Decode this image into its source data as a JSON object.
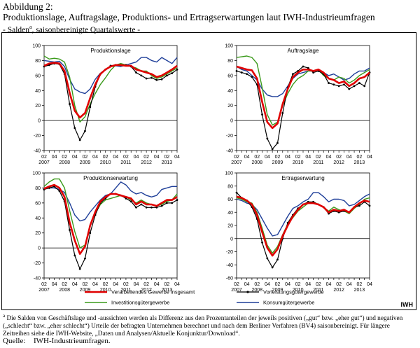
{
  "header": {
    "figure_label": "Abbildung 2:",
    "title": "Produktionslage, Auftragslage, Produktions- und Ertragserwartungen laut IWH-Industrieumfragen",
    "subtitle_pre": "- Salden",
    "subtitle_sup": "a",
    "subtitle_post": ", saisonbereinigte Quartalswerte -"
  },
  "brand": "IWH",
  "footnote": {
    "marker": "a",
    "text": "Die Salden von Geschäftslage und -aussichten werden als Differenz aus den Prozentanteilen der jeweils positiven („gut“ bzw. „eher gut“) und negativen („schlecht“ bzw. „eher schlecht“) Urteile der befragten Unternehmen berechnet und nach dem Berliner Verfahren (BV4) saisonbereinigt. Für längere Zeitreihen siehe die IWH-Website, „Daten und Analysen/Aktuelle Konjunktur/Download“."
  },
  "source": {
    "label": "Quelle:",
    "text": "IWH-Industrieumfragen."
  },
  "colors": {
    "verarbeitend": "#e00000",
    "vorleistung": "#000000",
    "investition": "#3a9a1a",
    "konsum": "#1f3f99"
  },
  "chart_data": [
    {
      "type": "line",
      "title": "Produktionslage",
      "x": [
        "2007Q2",
        "2007Q3",
        "2007Q4",
        "2008Q1",
        "2008Q2",
        "2008Q3",
        "2008Q4",
        "2009Q1",
        "2009Q2",
        "2009Q3",
        "2009Q4",
        "2010Q1",
        "2010Q2",
        "2010Q3",
        "2010Q4",
        "2011Q1",
        "2011Q2",
        "2011Q3",
        "2011Q4",
        "2012Q1",
        "2012Q2",
        "2012Q3",
        "2012Q4",
        "2013Q1",
        "2013Q2",
        "2013Q3",
        "2013Q4"
      ],
      "ylim": [
        -40,
        100
      ],
      "yticks": [
        -40,
        -20,
        0,
        20,
        40,
        60,
        80,
        100
      ],
      "tick_labels_top": [
        "02",
        "04",
        "02",
        "04",
        "02",
        "04",
        "02",
        "04",
        "02",
        "04",
        "02",
        "04",
        "02",
        "04"
      ],
      "tick_labels_bottom": [
        "2007",
        "2008",
        "2009",
        "2010",
        "2011",
        "2012",
        "2013"
      ],
      "series": [
        {
          "name": "Verarbeitendes Gewerbe insgesamt",
          "values": [
            73,
            76,
            77,
            76,
            66,
            37,
            13,
            4,
            10,
            30,
            48,
            62,
            68,
            72,
            74,
            74,
            73,
            73,
            68,
            66,
            64,
            62,
            58,
            60,
            64,
            68,
            73
          ]
        },
        {
          "name": "Vorleistungsgütergewerbe",
          "values": [
            72,
            74,
            76,
            75,
            62,
            22,
            -10,
            -26,
            -14,
            18,
            45,
            62,
            68,
            73,
            74,
            74,
            74,
            72,
            64,
            60,
            56,
            57,
            54,
            55,
            60,
            63,
            68
          ]
        },
        {
          "name": "Investitionsgütergewerbe",
          "values": [
            86,
            82,
            83,
            82,
            78,
            58,
            20,
            -2,
            5,
            22,
            36,
            48,
            57,
            67,
            74,
            76,
            74,
            72,
            70,
            66,
            66,
            60,
            56,
            58,
            62,
            66,
            70
          ]
        },
        {
          "name": "Konsumgütergewerbe",
          "values": [
            80,
            79,
            78,
            79,
            72,
            55,
            42,
            38,
            36,
            42,
            55,
            63,
            68,
            72,
            73,
            72,
            74,
            76,
            78,
            84,
            84,
            80,
            78,
            84,
            80,
            76,
            84
          ]
        }
      ]
    },
    {
      "type": "line",
      "title": "Auftragslage",
      "x": [
        "2007Q2",
        "2007Q3",
        "2007Q4",
        "2008Q1",
        "2008Q2",
        "2008Q3",
        "2008Q4",
        "2009Q1",
        "2009Q2",
        "2009Q3",
        "2009Q4",
        "2010Q1",
        "2010Q2",
        "2010Q3",
        "2010Q4",
        "2011Q1",
        "2011Q2",
        "2011Q3",
        "2011Q4",
        "2012Q1",
        "2012Q2",
        "2012Q3",
        "2012Q4",
        "2013Q1",
        "2013Q2",
        "2013Q3",
        "2013Q4"
      ],
      "ylim": [
        -40,
        100
      ],
      "yticks": [
        -40,
        -20,
        0,
        20,
        40,
        60,
        80,
        100
      ],
      "tick_labels_top": [
        "02",
        "04",
        "02",
        "04",
        "02",
        "04",
        "02",
        "04",
        "02",
        "04",
        "02",
        "04",
        "02",
        "04"
      ],
      "tick_labels_bottom": [
        "2007",
        "2008",
        "2009",
        "2010",
        "2011",
        "2012",
        "2013"
      ],
      "series": [
        {
          "name": "Verarbeitendes Gewerbe insgesamt",
          "values": [
            72,
            70,
            68,
            67,
            56,
            25,
            -2,
            -10,
            -4,
            22,
            42,
            58,
            64,
            68,
            68,
            66,
            68,
            64,
            56,
            54,
            50,
            52,
            46,
            50,
            56,
            58,
            64
          ]
        },
        {
          "name": "Vorleistungsgütergewerbe",
          "values": [
            66,
            64,
            62,
            58,
            48,
            8,
            -24,
            -38,
            -30,
            10,
            44,
            62,
            66,
            72,
            70,
            64,
            66,
            62,
            50,
            48,
            46,
            48,
            42,
            46,
            50,
            46,
            64
          ]
        },
        {
          "name": "Investitionsgütergewerbe",
          "values": [
            84,
            85,
            86,
            84,
            76,
            44,
            8,
            -6,
            -2,
            20,
            36,
            48,
            56,
            60,
            66,
            66,
            68,
            60,
            56,
            54,
            58,
            56,
            50,
            54,
            60,
            64,
            68
          ]
        },
        {
          "name": "Konsumgütergewerbe",
          "values": [
            72,
            68,
            66,
            60,
            54,
            42,
            34,
            32,
            32,
            36,
            46,
            56,
            62,
            64,
            66,
            66,
            68,
            64,
            60,
            62,
            58,
            54,
            56,
            62,
            66,
            66,
            70
          ]
        }
      ]
    },
    {
      "type": "line",
      "title": "Produktionserwartung",
      "x": [
        "2007Q2",
        "2007Q3",
        "2007Q4",
        "2008Q1",
        "2008Q2",
        "2008Q3",
        "2008Q4",
        "2009Q1",
        "2009Q2",
        "2009Q3",
        "2009Q4",
        "2010Q1",
        "2010Q2",
        "2010Q3",
        "2010Q4",
        "2011Q1",
        "2011Q2",
        "2011Q3",
        "2011Q4",
        "2012Q1",
        "2012Q2",
        "2012Q3",
        "2012Q4",
        "2013Q1",
        "2013Q2",
        "2013Q3",
        "2013Q4"
      ],
      "ylim": [
        -40,
        100
      ],
      "yticks": [
        -40,
        -20,
        0,
        20,
        40,
        60,
        80,
        100
      ],
      "tick_labels_top": [
        "02",
        "04",
        "02",
        "04",
        "02",
        "04",
        "02",
        "04",
        "02",
        "04",
        "02",
        "04",
        "02",
        "04"
      ],
      "tick_labels_bottom": [
        "2007",
        "2008",
        "2009",
        "2010",
        "2011",
        "2012",
        "2013"
      ],
      "series": [
        {
          "name": "Verarbeitendes Gewerbe insgesamt",
          "values": [
            79,
            82,
            84,
            80,
            68,
            34,
            10,
            -8,
            2,
            30,
            48,
            62,
            68,
            72,
            72,
            70,
            68,
            66,
            58,
            62,
            58,
            58,
            56,
            60,
            64,
            64,
            68
          ]
        },
        {
          "name": "Vorleistungsgütergewerbe",
          "values": [
            78,
            80,
            82,
            76,
            62,
            24,
            -10,
            -28,
            -14,
            20,
            44,
            60,
            66,
            72,
            72,
            70,
            66,
            62,
            54,
            58,
            54,
            54,
            54,
            56,
            60,
            60,
            64
          ]
        },
        {
          "name": "Investitionsgütergewerbe",
          "values": [
            82,
            88,
            92,
            92,
            80,
            50,
            22,
            0,
            4,
            30,
            46,
            58,
            64,
            66,
            68,
            70,
            68,
            64,
            60,
            64,
            60,
            58,
            56,
            58,
            62,
            64,
            72
          ]
        },
        {
          "name": "Konsumgütergewerbe",
          "values": [
            80,
            80,
            80,
            78,
            74,
            60,
            44,
            36,
            38,
            48,
            56,
            64,
            70,
            72,
            80,
            88,
            84,
            76,
            72,
            74,
            70,
            68,
            70,
            78,
            80,
            82,
            82
          ]
        }
      ]
    },
    {
      "type": "line",
      "title": "Ertragserwartung",
      "x": [
        "2007Q2",
        "2007Q3",
        "2007Q4",
        "2008Q1",
        "2008Q2",
        "2008Q3",
        "2008Q4",
        "2009Q1",
        "2009Q2",
        "2009Q3",
        "2009Q4",
        "2010Q1",
        "2010Q2",
        "2010Q3",
        "2010Q4",
        "2011Q1",
        "2011Q2",
        "2011Q3",
        "2011Q4",
        "2012Q1",
        "2012Q2",
        "2012Q3",
        "2012Q4",
        "2013Q1",
        "2013Q2",
        "2013Q3",
        "2013Q4"
      ],
      "ylim": [
        -60,
        100
      ],
      "yticks": [
        -60,
        -40,
        -20,
        0,
        20,
        40,
        60,
        80,
        100
      ],
      "tick_labels_top": [
        "02",
        "04",
        "02",
        "04",
        "02",
        "04",
        "02",
        "04",
        "02",
        "04",
        "02",
        "04",
        "02",
        "04"
      ],
      "tick_labels_bottom": [
        "2007",
        "2008",
        "2009",
        "2010",
        "2011",
        "2012",
        "2013"
      ],
      "series": [
        {
          "name": "Verarbeitendes Gewerbe insgesamt",
          "values": [
            64,
            62,
            58,
            52,
            36,
            10,
            -14,
            -26,
            -16,
            4,
            20,
            34,
            44,
            52,
            54,
            54,
            52,
            48,
            40,
            44,
            42,
            44,
            40,
            48,
            54,
            58,
            56
          ]
        },
        {
          "name": "Vorleistungsgütergewerbe",
          "values": [
            70,
            62,
            58,
            48,
            30,
            -6,
            -30,
            -44,
            -32,
            0,
            24,
            36,
            46,
            52,
            56,
            56,
            52,
            48,
            38,
            42,
            40,
            42,
            40,
            48,
            50,
            56,
            50
          ]
        },
        {
          "name": "Investitionsgütergewerbe",
          "values": [
            62,
            60,
            56,
            54,
            40,
            16,
            -10,
            -22,
            -12,
            6,
            22,
            32,
            42,
            48,
            54,
            56,
            52,
            48,
            42,
            48,
            44,
            42,
            38,
            46,
            52,
            60,
            62
          ]
        },
        {
          "name": "Konsumgütergewerbe",
          "values": [
            60,
            58,
            54,
            52,
            44,
            30,
            16,
            4,
            6,
            20,
            34,
            46,
            50,
            56,
            60,
            70,
            70,
            64,
            56,
            60,
            60,
            58,
            50,
            52,
            58,
            64,
            68
          ]
        }
      ]
    }
  ],
  "legend": [
    {
      "label": "Verarbeitendes Gewerbe insgesamt",
      "key": "verarbeitend"
    },
    {
      "label": "Vorleistungsgütergewerbe",
      "key": "vorleistung"
    },
    {
      "label": "Investitionsgütergewerbe",
      "key": "investition"
    },
    {
      "label": "Konsumgütergewerbe",
      "key": "konsum"
    }
  ]
}
